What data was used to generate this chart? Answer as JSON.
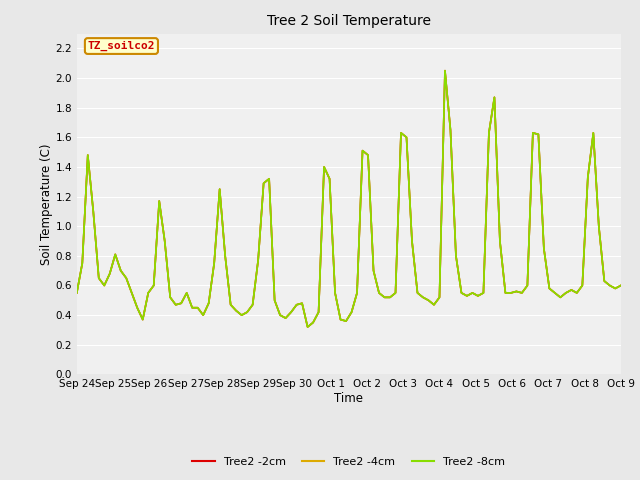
{
  "title": "Tree 2 Soil Temperature",
  "xlabel": "Time",
  "ylabel": "Soil Temperature (C)",
  "annotation_text": "TZ_soilco2",
  "annotation_bg": "#ffffcc",
  "annotation_border": "#cc8800",
  "annotation_text_color": "#cc0000",
  "ylim": [
    0.0,
    2.3
  ],
  "yticks": [
    0.0,
    0.2,
    0.4,
    0.6,
    0.8,
    1.0,
    1.2,
    1.4,
    1.6,
    1.8,
    2.0,
    2.2
  ],
  "bg_color": "#e8e8e8",
  "plot_bg": "#f0f0f0",
  "grid_color": "#ffffff",
  "line_colors": {
    "2cm": "#dd0000",
    "4cm": "#ddaa00",
    "8cm": "#88dd00"
  },
  "legend_labels": [
    "Tree2 -2cm",
    "Tree2 -4cm",
    "Tree2 -8cm"
  ],
  "xtick_labels": [
    "Sep 24",
    "Sep 25",
    "Sep 26",
    "Sep 27",
    "Sep 28",
    "Sep 29",
    "Sep 30",
    "Oct 1",
    "Oct 2",
    "Oct 3",
    "Oct 4",
    "Oct 5",
    "Oct 6",
    "Oct 7",
    "Oct 8",
    "Oct 9"
  ],
  "series_8cm": [
    0.55,
    0.75,
    1.48,
    1.1,
    0.65,
    0.6,
    0.68,
    0.81,
    0.7,
    0.65,
    0.55,
    0.45,
    0.37,
    0.55,
    0.6,
    1.17,
    0.9,
    0.52,
    0.47,
    0.48,
    0.55,
    0.45,
    0.45,
    0.4,
    0.48,
    0.75,
    1.25,
    0.8,
    0.47,
    0.43,
    0.4,
    0.42,
    0.47,
    0.77,
    1.29,
    1.32,
    0.5,
    0.4,
    0.38,
    0.42,
    0.47,
    0.48,
    0.32,
    0.35,
    0.42,
    1.4,
    1.32,
    0.55,
    0.37,
    0.36,
    0.42,
    0.55,
    1.51,
    1.48,
    0.7,
    0.55,
    0.52,
    0.52,
    0.55,
    1.63,
    1.6,
    0.9,
    0.55,
    0.52,
    0.5,
    0.47,
    0.52,
    2.05,
    1.65,
    0.8,
    0.55,
    0.53,
    0.55,
    0.53,
    0.55,
    1.63,
    1.87,
    0.9,
    0.55,
    0.55,
    0.56,
    0.55,
    0.6,
    1.63,
    1.62,
    0.85,
    0.58,
    0.55,
    0.52,
    0.55,
    0.57,
    0.55,
    0.6,
    1.33,
    1.63,
    1.0,
    0.63,
    0.6,
    0.58,
    0.6
  ]
}
